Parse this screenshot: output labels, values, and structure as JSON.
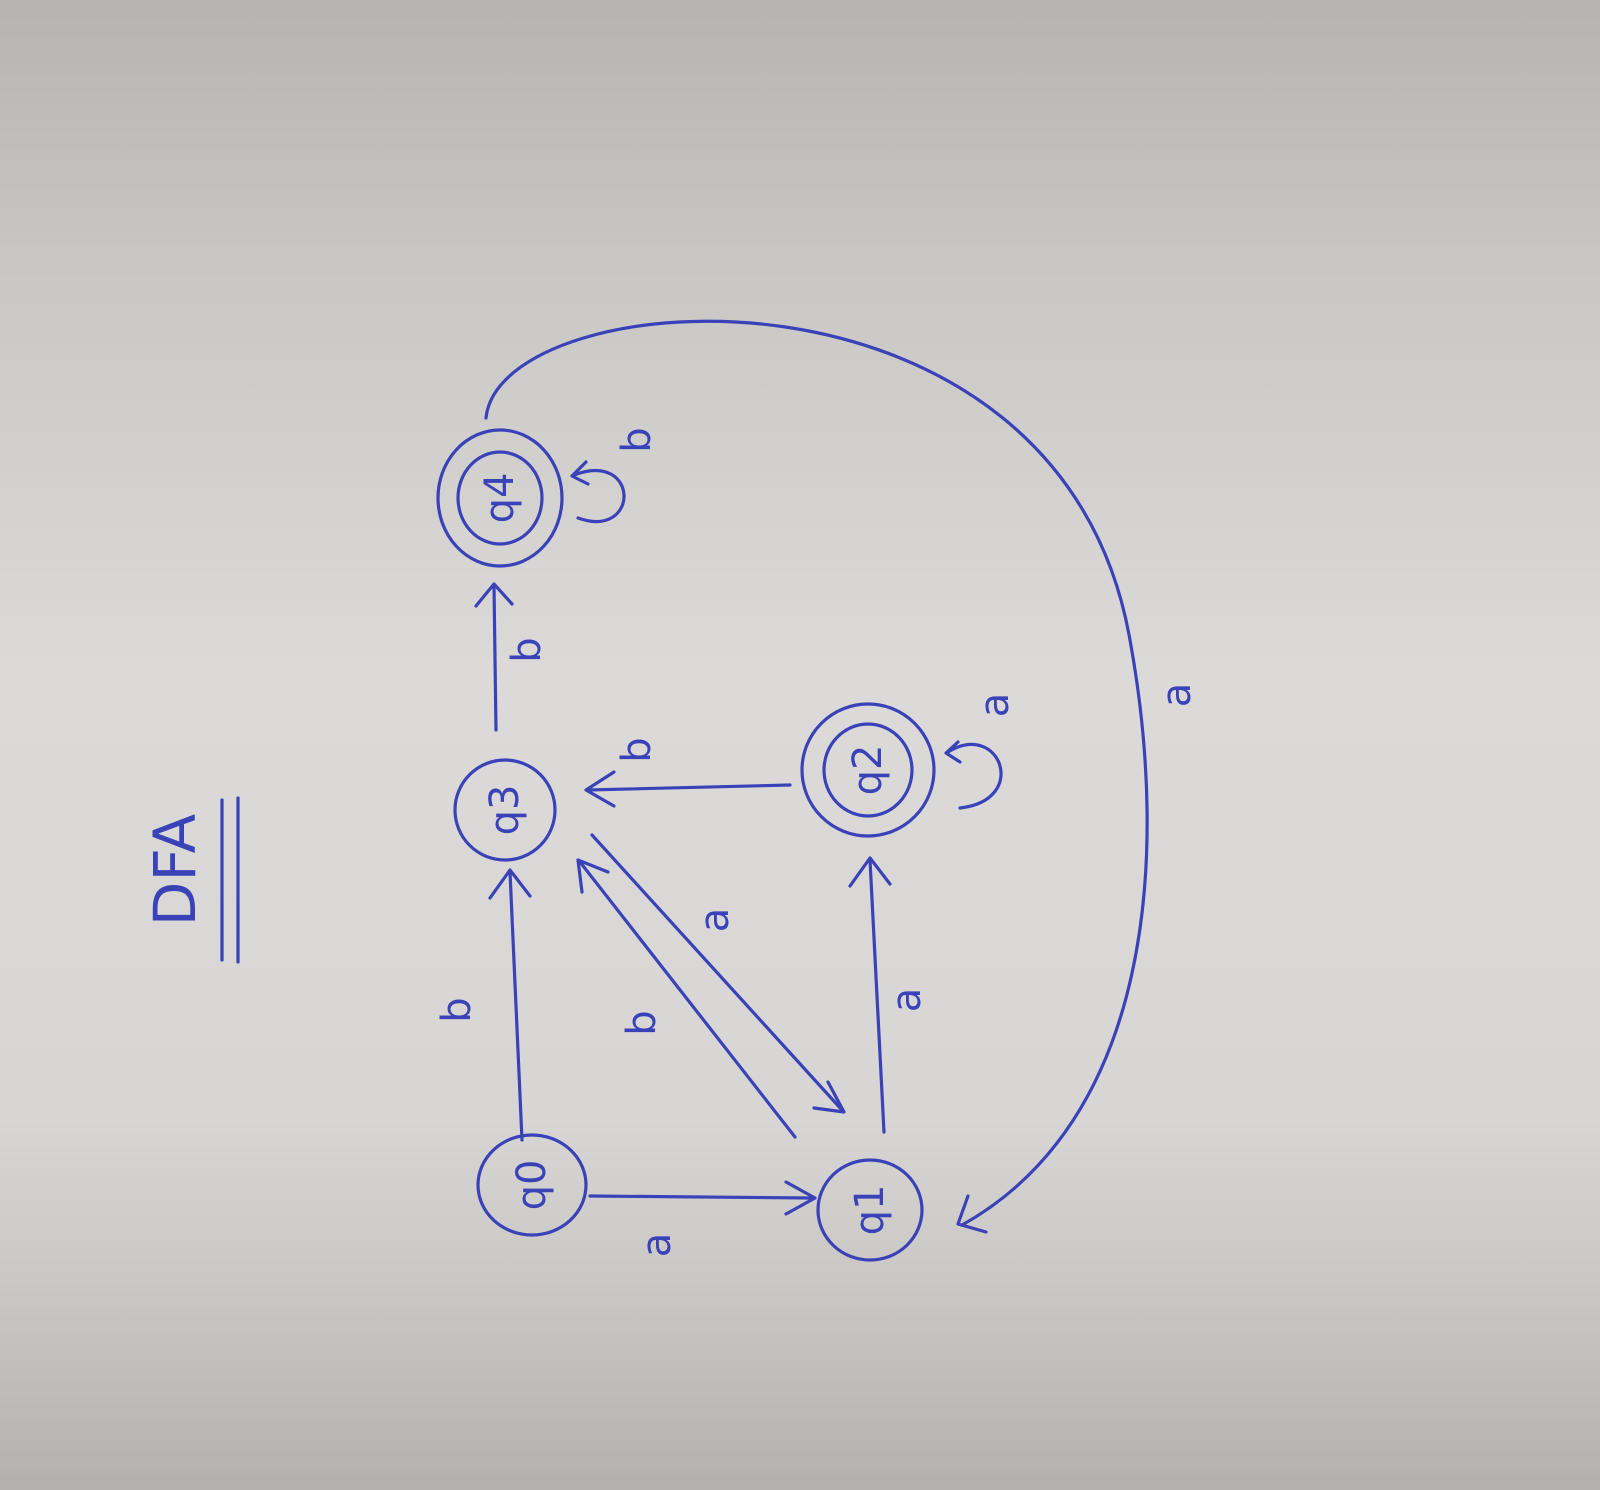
{
  "title": "DFA",
  "colors": {
    "ink": "#3a42b8",
    "paper": "#d9d7d5"
  },
  "states": [
    {
      "id": "q0",
      "label": "q0",
      "accepting": false
    },
    {
      "id": "q1",
      "label": "q1",
      "accepting": false
    },
    {
      "id": "q2",
      "label": "q2",
      "accepting": true
    },
    {
      "id": "q3",
      "label": "q3",
      "accepting": false
    },
    {
      "id": "q4",
      "label": "q4",
      "accepting": true
    }
  ],
  "transitions": [
    {
      "from": "q0",
      "to": "q1",
      "label": "a"
    },
    {
      "from": "q0",
      "to": "q3",
      "label": "b"
    },
    {
      "from": "q1",
      "to": "q2",
      "label": "a"
    },
    {
      "from": "q1",
      "to": "q3",
      "label": "b"
    },
    {
      "from": "q3",
      "to": "q1",
      "label": "a"
    },
    {
      "from": "q2",
      "to": "q3",
      "label": "b"
    },
    {
      "from": "q2",
      "to": "q2",
      "label": "a"
    },
    {
      "from": "q3",
      "to": "q4",
      "label": "b"
    },
    {
      "from": "q4",
      "to": "q4",
      "label": "b"
    },
    {
      "from": "q4",
      "to": "q1",
      "label": "a"
    }
  ]
}
